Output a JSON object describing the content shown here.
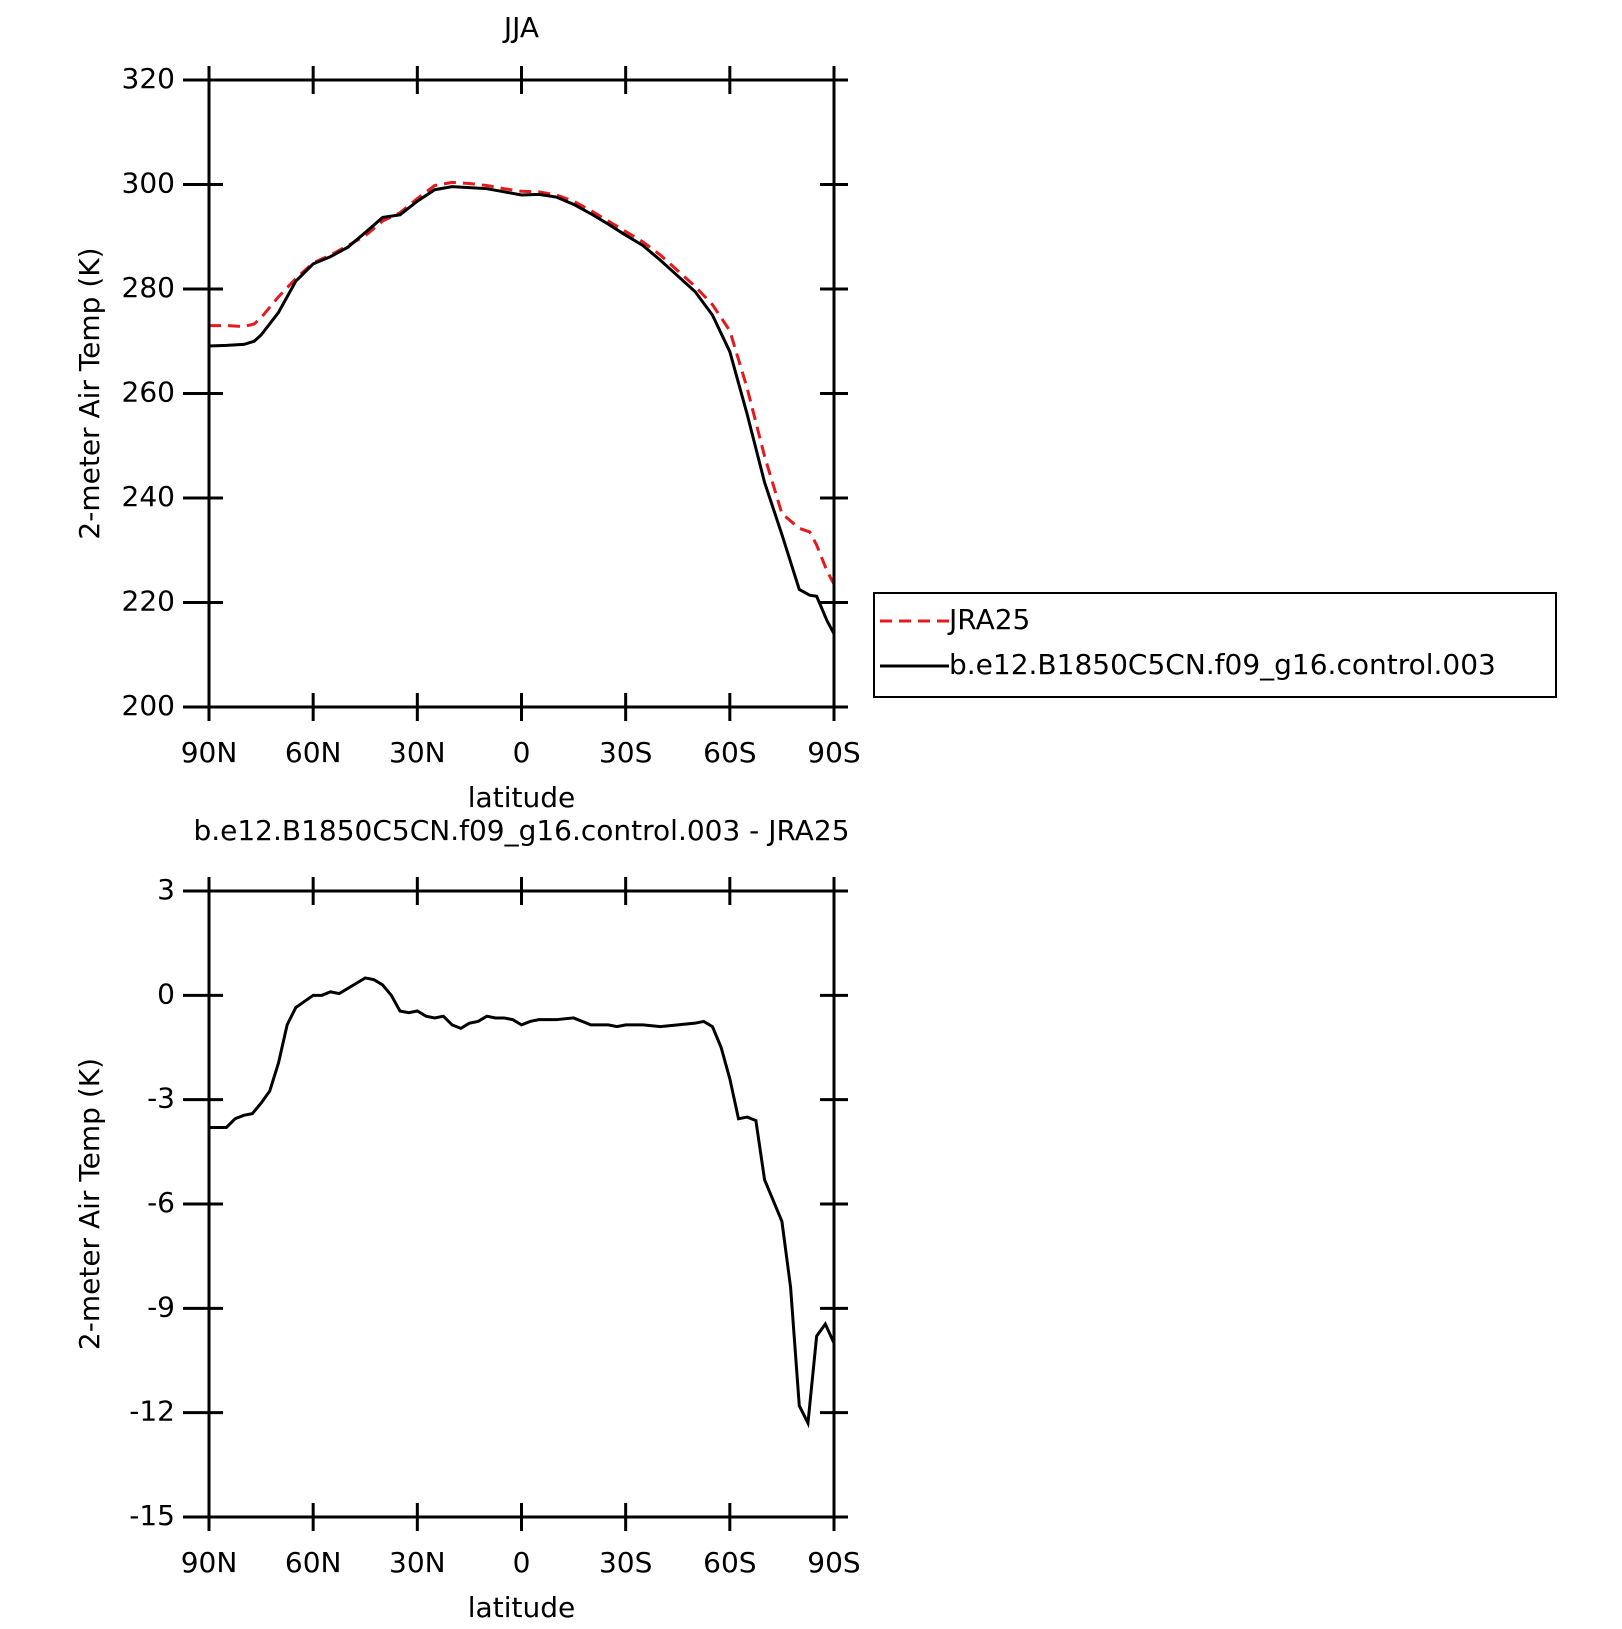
{
  "chart_data": [
    {
      "type": "line",
      "title": "JJA",
      "xlabel": "latitude",
      "ylabel": "2-meter Air Temp (K)",
      "x": [
        90,
        85,
        80,
        77,
        75,
        70,
        65,
        60,
        55,
        50,
        45,
        40,
        35,
        30,
        25,
        20,
        15,
        10,
        5,
        0,
        -5,
        -10,
        -15,
        -20,
        -25,
        -30,
        -35,
        -40,
        -45,
        -50,
        -55,
        -60,
        -65,
        -70,
        -75,
        -80,
        -83,
        -85,
        -88,
        -90
      ],
      "series": [
        {
          "name": "JRA25",
          "color": "#e41a1c",
          "linestyle": "dashed",
          "values": [
            273,
            273,
            272.8,
            273.3,
            274.5,
            278.5,
            282,
            285,
            286.5,
            288.3,
            290.2,
            293,
            294.6,
            297.3,
            299.8,
            300.4,
            300.2,
            299.8,
            299.2,
            298.7,
            298.6,
            298,
            296.8,
            295,
            293,
            291,
            289,
            286.5,
            283.5,
            280.5,
            277,
            272,
            261,
            248,
            237,
            234.2,
            233.5,
            231,
            226,
            223.5
          ]
        },
        {
          "name": "b.e12.B1850C5CN.f09_g16.control.003",
          "color": "#000000",
          "linestyle": "solid",
          "values": [
            269.1,
            269.2,
            269.4,
            270,
            271.2,
            275.5,
            281.5,
            284.8,
            286.2,
            288,
            290.8,
            293.7,
            294.2,
            296.8,
            299,
            299.6,
            299.4,
            299.2,
            298.6,
            298,
            298.1,
            297.6,
            296.2,
            294.4,
            292.4,
            290.3,
            288.3,
            285.5,
            282.5,
            279.5,
            275,
            268,
            256,
            243,
            233,
            222.5,
            221.4,
            221.2,
            216.5,
            214
          ]
        }
      ],
      "xlim": [
        90,
        -90
      ],
      "xticks": [
        {
          "value": 90,
          "label": "90N"
        },
        {
          "value": 60,
          "label": "60N"
        },
        {
          "value": 30,
          "label": "30N"
        },
        0,
        {
          "value": -30,
          "label": "30S"
        },
        {
          "value": -60,
          "label": "60S"
        },
        {
          "value": -90,
          "label": "90S"
        }
      ],
      "ylim": [
        200,
        320
      ],
      "yticks": [
        200,
        220,
        240,
        260,
        280,
        300,
        320
      ],
      "legend": "outside-right"
    },
    {
      "type": "line",
      "title": "b.e12.B1850C5CN.f09_g16.control.003 - JRA25",
      "xlabel": "latitude",
      "ylabel": "2-meter Air Temp (K)",
      "x": [
        90,
        85,
        82.5,
        80,
        77.5,
        75,
        72.5,
        70,
        67.5,
        65,
        60,
        57.5,
        55,
        52.5,
        50,
        45,
        42.5,
        40,
        37.5,
        35,
        32.5,
        30,
        27.5,
        25,
        22.5,
        20,
        17.5,
        15,
        12.5,
        10,
        7.5,
        5,
        2.5,
        0,
        -2.5,
        -5,
        -10,
        -15,
        -20,
        -25,
        -27.5,
        -30,
        -35,
        -40,
        -45,
        -50,
        -52.5,
        -55,
        -57.5,
        -60,
        -62.5,
        -65,
        -67.5,
        -70,
        -72.5,
        -75,
        -77.5,
        -80,
        -82.5,
        -85,
        -87.5,
        -90
      ],
      "series": [
        {
          "color": "#000000",
          "linestyle": "solid",
          "values": [
            -3.8,
            -3.8,
            -3.55,
            -3.45,
            -3.4,
            -3.1,
            -2.75,
            -1.95,
            -0.85,
            -0.35,
            0,
            0,
            0.1,
            0.05,
            0.2,
            0.5,
            0.45,
            0.3,
            0,
            -0.45,
            -0.5,
            -0.45,
            -0.6,
            -0.65,
            -0.6,
            -0.85,
            -0.95,
            -0.8,
            -0.75,
            -0.6,
            -0.65,
            -0.65,
            -0.7,
            -0.85,
            -0.75,
            -0.7,
            -0.7,
            -0.65,
            -0.85,
            -0.85,
            -0.9,
            -0.85,
            -0.85,
            -0.9,
            -0.85,
            -0.8,
            -0.75,
            -0.9,
            -1.5,
            -2.4,
            -3.55,
            -3.5,
            -3.6,
            -5.3,
            -5.9,
            -6.5,
            -8.4,
            -11.8,
            -12.3,
            -9.8,
            -9.45,
            -10
          ]
        }
      ],
      "xlim": [
        90,
        -90
      ],
      "xticks": [
        {
          "value": 90,
          "label": "90N"
        },
        {
          "value": 60,
          "label": "60N"
        },
        {
          "value": 30,
          "label": "30N"
        },
        0,
        {
          "value": -30,
          "label": "30S"
        },
        {
          "value": -60,
          "label": "60S"
        },
        {
          "value": -90,
          "label": "90S"
        }
      ],
      "ylim": [
        -15,
        3
      ],
      "yticks": [
        -15,
        -12,
        -9,
        -6,
        -3,
        0,
        3
      ]
    }
  ]
}
